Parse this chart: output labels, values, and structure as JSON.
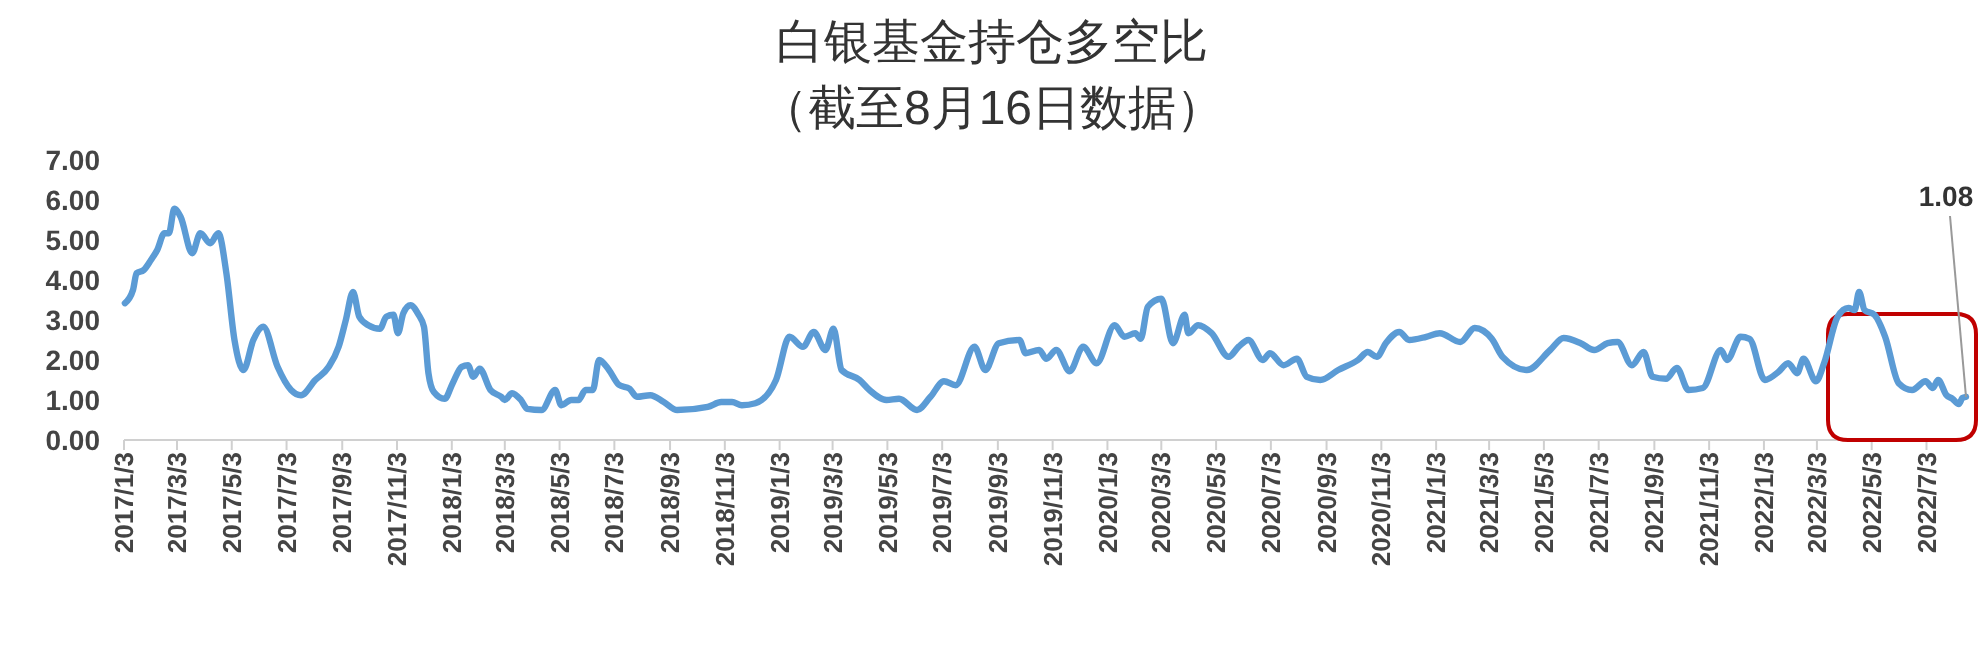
{
  "chart_data": {
    "type": "line",
    "title": "白银基金持仓多空比",
    "subtitle": "（截至8月16日数据）",
    "xlim": [
      "2017-01-03",
      "2022-08-16"
    ],
    "xticks": [
      {
        "value": "2017-01-03",
        "label": "2017/1/3"
      },
      {
        "value": "2017-03-03",
        "label": "2017/3/3"
      },
      {
        "value": "2017-05-03",
        "label": "2017/5/3"
      },
      {
        "value": "2017-07-03",
        "label": "2017/7/3"
      },
      {
        "value": "2017-09-03",
        "label": "2017/9/3"
      },
      {
        "value": "2017-11-03",
        "label": "2017/11/3"
      },
      {
        "value": "2018-01-03",
        "label": "2018/1/3"
      },
      {
        "value": "2018-03-03",
        "label": "2018/3/3"
      },
      {
        "value": "2018-05-03",
        "label": "2018/5/3"
      },
      {
        "value": "2018-07-03",
        "label": "2018/7/3"
      },
      {
        "value": "2018-09-03",
        "label": "2018/9/3"
      },
      {
        "value": "2018-11-03",
        "label": "2018/11/3"
      },
      {
        "value": "2019-01-03",
        "label": "2019/1/3"
      },
      {
        "value": "2019-03-03",
        "label": "2019/3/3"
      },
      {
        "value": "2019-05-03",
        "label": "2019/5/3"
      },
      {
        "value": "2019-07-03",
        "label": "2019/7/3"
      },
      {
        "value": "2019-09-03",
        "label": "2019/9/3"
      },
      {
        "value": "2019-11-03",
        "label": "2019/11/3"
      },
      {
        "value": "2020-01-03",
        "label": "2020/1/3"
      },
      {
        "value": "2020-03-03",
        "label": "2020/3/3"
      },
      {
        "value": "2020-05-03",
        "label": "2020/5/3"
      },
      {
        "value": "2020-07-03",
        "label": "2020/7/3"
      },
      {
        "value": "2020-09-03",
        "label": "2020/9/3"
      },
      {
        "value": "2020-11-03",
        "label": "2020/11/3"
      },
      {
        "value": "2021-01-03",
        "label": "2021/1/3"
      },
      {
        "value": "2021-03-03",
        "label": "2021/3/3"
      },
      {
        "value": "2021-05-03",
        "label": "2021/5/3"
      },
      {
        "value": "2021-07-03",
        "label": "2021/7/3"
      },
      {
        "value": "2021-09-03",
        "label": "2021/9/3"
      },
      {
        "value": "2021-11-03",
        "label": "2021/11/3"
      },
      {
        "value": "2022-01-03",
        "label": "2022/1/3"
      },
      {
        "value": "2022-03-03",
        "label": "2022/3/3"
      },
      {
        "value": "2022-05-03",
        "label": "2022/5/3"
      },
      {
        "value": "2022-07-03",
        "label": "2022/7/3"
      }
    ],
    "ylim": [
      0,
      7
    ],
    "yticks": [
      {
        "value": 0,
        "label": "0.00"
      },
      {
        "value": 1,
        "label": "1.00"
      },
      {
        "value": 2,
        "label": "2.00"
      },
      {
        "value": 3,
        "label": "3.00"
      },
      {
        "value": 4,
        "label": "4.00"
      },
      {
        "value": 5,
        "label": "5.00"
      },
      {
        "value": 6,
        "label": "6.00"
      },
      {
        "value": 7,
        "label": "7.00"
      }
    ],
    "grid": false,
    "marker": "none",
    "line_style": "solid",
    "x": [
      "2017-01-04",
      "2017-01-13",
      "2017-01-17",
      "2017-01-25",
      "2017-02-02",
      "2017-02-09",
      "2017-02-17",
      "2017-02-22",
      "2017-02-28",
      "2017-03-07",
      "2017-03-20",
      "2017-03-29",
      "2017-04-09",
      "2017-04-18",
      "2017-04-27",
      "2017-05-06",
      "2017-05-16",
      "2017-05-27",
      "2017-06-07",
      "2017-06-23",
      "2017-07-08",
      "2017-07-19",
      "2017-08-04",
      "2017-08-19",
      "2017-08-30",
      "2017-09-07",
      "2017-09-15",
      "2017-09-22",
      "2017-10-02",
      "2017-10-15",
      "2017-10-22",
      "2017-10-30",
      "2017-11-04",
      "2017-11-10",
      "2017-11-18",
      "2017-11-27",
      "2017-12-03",
      "2017-12-08",
      "2017-12-14",
      "2017-12-26",
      "2018-01-04",
      "2018-01-14",
      "2018-01-21",
      "2018-01-27",
      "2018-02-03",
      "2018-02-15",
      "2018-02-27",
      "2018-03-03",
      "2018-03-11",
      "2018-03-21",
      "2018-03-28",
      "2018-04-13",
      "2018-04-28",
      "2018-05-05",
      "2018-05-16",
      "2018-05-24",
      "2018-06-01",
      "2018-06-09",
      "2018-06-16",
      "2018-06-27",
      "2018-07-08",
      "2018-07-20",
      "2018-07-28",
      "2018-08-12",
      "2018-08-27",
      "2018-09-11",
      "2018-10-15",
      "2018-10-30",
      "2018-11-11",
      "2018-11-22",
      "2018-12-07",
      "2018-12-30",
      "2019-01-14",
      "2019-01-29",
      "2019-02-10",
      "2019-02-23",
      "2019-03-04",
      "2019-03-13",
      "2019-04-02",
      "2019-04-13",
      "2019-05-02",
      "2019-05-16",
      "2019-06-05",
      "2019-06-20",
      "2019-07-05",
      "2019-07-18",
      "2019-08-08",
      "2019-08-20",
      "2019-09-04",
      "2019-09-27",
      "2019-10-04",
      "2019-10-19",
      "2019-10-27",
      "2019-11-07",
      "2019-11-22",
      "2019-12-07",
      "2019-12-22",
      "2020-01-11",
      "2020-01-22",
      "2020-02-03",
      "2020-02-09",
      "2020-02-17",
      "2020-03-03",
      "2020-03-16",
      "2020-03-29",
      "2020-04-02",
      "2020-04-13",
      "2020-04-28",
      "2020-05-17",
      "2020-05-28",
      "2020-06-08",
      "2020-06-24",
      "2020-07-02",
      "2020-07-17",
      "2020-08-01",
      "2020-08-12",
      "2020-08-27",
      "2020-09-16",
      "2020-10-08",
      "2020-10-19",
      "2020-10-29",
      "2020-11-08",
      "2020-11-23",
      "2020-12-04",
      "2020-12-23",
      "2021-01-07",
      "2021-01-30",
      "2021-02-15",
      "2021-03-06",
      "2021-03-18",
      "2021-04-14",
      "2021-05-10",
      "2021-05-25",
      "2021-06-13",
      "2021-06-28",
      "2021-07-13",
      "2021-07-24",
      "2021-08-09",
      "2021-08-22",
      "2021-09-01",
      "2021-09-16",
      "2021-09-28",
      "2021-10-11",
      "2021-10-27",
      "2021-11-16",
      "2021-11-23",
      "2021-12-08",
      "2021-12-18",
      "2022-01-04",
      "2022-01-19",
      "2022-01-30",
      "2022-02-09",
      "2022-02-16",
      "2022-03-02",
      "2022-03-11",
      "2022-03-26",
      "2022-04-07",
      "2022-04-14",
      "2022-04-19",
      "2022-04-25",
      "2022-05-06",
      "2022-05-18",
      "2022-06-02",
      "2022-06-17",
      "2022-07-02",
      "2022-07-10",
      "2022-07-16",
      "2022-07-25",
      "2022-08-01",
      "2022-08-08",
      "2022-08-12",
      "2022-08-16"
    ],
    "series": [
      {
        "color": "#5b9bd5",
        "values": [
          3.42,
          3.75,
          4.17,
          4.25,
          4.5,
          4.75,
          5.17,
          5.17,
          5.78,
          5.58,
          4.67,
          5.17,
          4.92,
          5.17,
          4.17,
          2.5,
          1.75,
          2.5,
          2.83,
          1.83,
          1.25,
          1.12,
          1.5,
          1.83,
          2.33,
          3.0,
          3.7,
          3.08,
          2.87,
          2.78,
          3.08,
          3.13,
          2.67,
          3.17,
          3.37,
          3.13,
          2.83,
          1.67,
          1.2,
          1.03,
          1.42,
          1.83,
          1.87,
          1.58,
          1.78,
          1.25,
          1.08,
          1.0,
          1.17,
          1.0,
          0.78,
          0.75,
          1.25,
          0.87,
          1.0,
          1.0,
          1.25,
          1.25,
          2.0,
          1.75,
          1.38,
          1.28,
          1.08,
          1.12,
          0.95,
          0.75,
          0.83,
          0.95,
          0.95,
          0.87,
          0.92,
          1.5,
          2.58,
          2.33,
          2.7,
          2.25,
          2.78,
          1.75,
          1.5,
          1.25,
          1.0,
          1.03,
          0.75,
          1.08,
          1.47,
          1.37,
          2.33,
          1.75,
          2.42,
          2.5,
          2.17,
          2.25,
          2.03,
          2.25,
          1.72,
          2.33,
          1.92,
          2.87,
          2.58,
          2.67,
          2.53,
          3.33,
          3.53,
          2.42,
          3.13,
          2.67,
          2.87,
          2.67,
          2.08,
          2.33,
          2.5,
          2.0,
          2.17,
          1.87,
          2.03,
          1.58,
          1.5,
          1.75,
          2.0,
          2.2,
          2.08,
          2.42,
          2.7,
          2.5,
          2.58,
          2.67,
          2.45,
          2.8,
          2.53,
          2.08,
          1.75,
          2.25,
          2.55,
          2.42,
          2.25,
          2.42,
          2.45,
          1.87,
          2.2,
          1.58,
          1.53,
          1.8,
          1.25,
          1.3,
          2.25,
          2.0,
          2.58,
          2.53,
          1.5,
          1.7,
          1.92,
          1.67,
          2.03,
          1.47,
          1.92,
          3.08,
          3.3,
          3.25,
          3.7,
          3.25,
          3.13,
          2.58,
          1.42,
          1.25,
          1.47,
          1.3,
          1.5,
          1.13,
          1.03,
          0.9,
          1.05,
          1.08
        ]
      }
    ],
    "annotations": [
      {
        "text": "1.08",
        "x": "2022-08-16",
        "y": 1.08
      }
    ]
  }
}
